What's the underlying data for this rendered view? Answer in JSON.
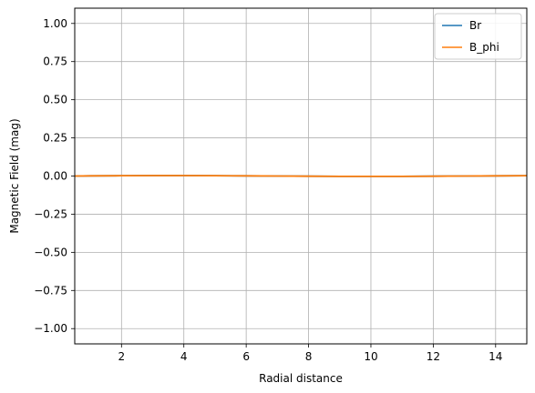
{
  "chart_data": {
    "type": "line",
    "title": "",
    "xlabel": "Radial distance",
    "ylabel": "Magnetic Field (mag)",
    "xlim": [
      0.5,
      15.0
    ],
    "ylim": [
      -1.1,
      1.1
    ],
    "xticks": [
      2,
      4,
      6,
      8,
      10,
      12,
      14
    ],
    "yticks": [
      1.0,
      0.75,
      0.5,
      0.25,
      0.0,
      -0.25,
      -0.5,
      -0.75,
      -1.0
    ],
    "ytick_labels": [
      "1.00",
      "0.75",
      "0.50",
      "0.25",
      "0.00",
      "−0.25",
      "−0.50",
      "−0.75",
      "−1.00"
    ],
    "grid": true,
    "legend_placement": "top-right",
    "x": [
      0.5,
      1,
      2,
      3,
      4,
      5,
      6,
      7,
      8,
      9,
      10,
      11,
      12,
      13,
      14,
      15
    ],
    "series": [
      {
        "name": "Br",
        "color": "#1f77b4",
        "values": [
          0.0,
          0.001,
          0.002,
          0.003,
          0.003,
          0.002,
          0.001,
          0.0,
          -0.001,
          -0.002,
          -0.002,
          -0.002,
          -0.001,
          0.0,
          0.001,
          0.002
        ]
      },
      {
        "name": "B_phi",
        "color": "#ff7f0e",
        "values": [
          0.0,
          0.001,
          0.002,
          0.003,
          0.003,
          0.002,
          0.001,
          0.0,
          -0.001,
          -0.002,
          -0.002,
          -0.002,
          -0.001,
          0.0,
          0.001,
          0.002
        ]
      }
    ]
  }
}
